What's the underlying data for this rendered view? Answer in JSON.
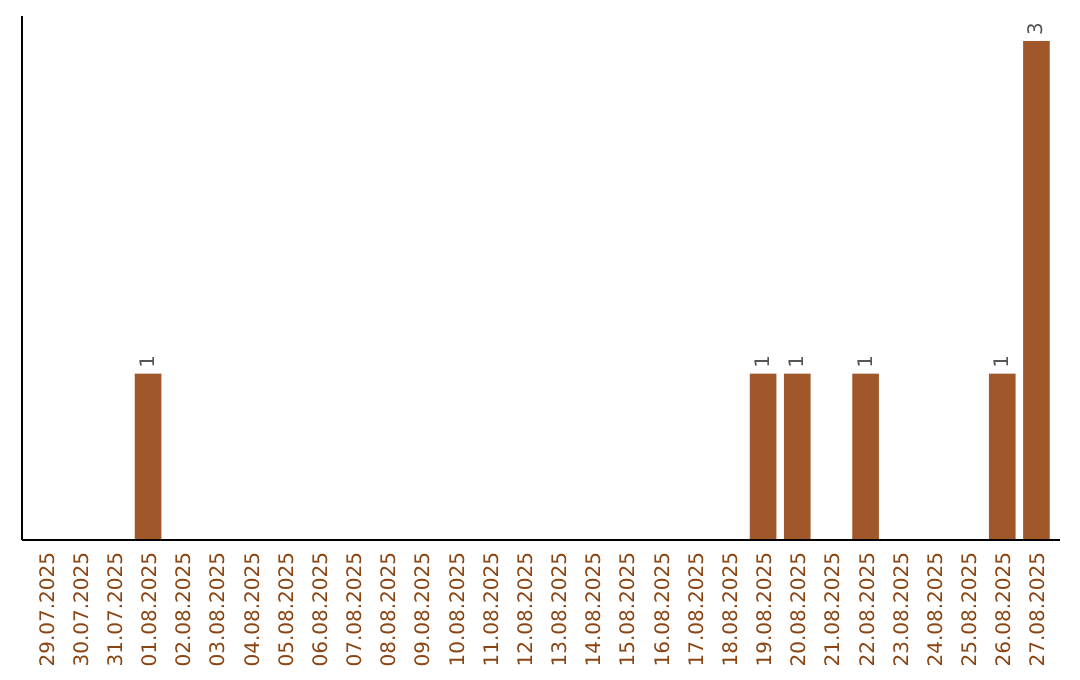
{
  "chart_data": {
    "type": "bar",
    "categories": [
      "29.07.2025",
      "30.07.2025",
      "31.07.2025",
      "01.08.2025",
      "02.08.2025",
      "03.08.2025",
      "04.08.2025",
      "05.08.2025",
      "06.08.2025",
      "07.08.2025",
      "08.08.2025",
      "09.08.2025",
      "10.08.2025",
      "11.08.2025",
      "12.08.2025",
      "13.08.2025",
      "14.08.2025",
      "15.08.2025",
      "16.08.2025",
      "17.08.2025",
      "18.08.2025",
      "19.08.2025",
      "20.08.2025",
      "21.08.2025",
      "22.08.2025",
      "23.08.2025",
      "24.08.2025",
      "25.08.2025",
      "26.08.2025",
      "27.08.2025"
    ],
    "values": [
      0,
      0,
      0,
      1,
      0,
      0,
      0,
      0,
      0,
      0,
      0,
      0,
      0,
      0,
      0,
      0,
      0,
      0,
      0,
      0,
      0,
      1,
      1,
      0,
      1,
      0,
      0,
      0,
      1,
      3
    ],
    "value_labels": [
      null,
      null,
      null,
      "1",
      null,
      null,
      null,
      null,
      null,
      null,
      null,
      null,
      null,
      null,
      null,
      null,
      null,
      null,
      null,
      null,
      null,
      "1",
      "1",
      null,
      "1",
      null,
      null,
      null,
      "1",
      "3"
    ],
    "color": "#a0582a",
    "ylim": [
      0,
      3.15
    ],
    "tick_labels": "x"
  }
}
